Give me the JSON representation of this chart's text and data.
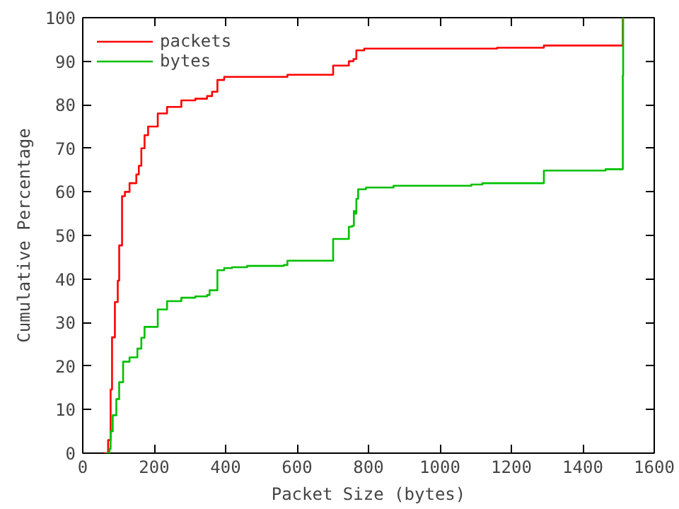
{
  "chart_data": {
    "type": "step",
    "xlabel": "Packet Size (bytes)",
    "ylabel": "Cumulative Percentage",
    "xlim": [
      0,
      1600
    ],
    "ylim": [
      0,
      100
    ],
    "xticks": [
      0,
      200,
      400,
      600,
      800,
      1000,
      1200,
      1400,
      1600
    ],
    "yticks": [
      0,
      10,
      20,
      30,
      40,
      50,
      60,
      70,
      80,
      90,
      100
    ],
    "grid": false,
    "legend": "top left",
    "marker": "none",
    "line_style": "solid",
    "series": [
      {
        "name": "packets",
        "color": "#ff0000",
        "x": [
          59,
          71,
          78,
          82,
          90,
          98,
          102,
          110,
          118,
          131,
          150,
          157,
          164,
          173,
          183,
          210,
          236,
          276,
          315,
          348,
          362,
          377,
          396,
          550,
          573,
          701,
          745,
          758,
          766,
          788,
          1160,
          1291,
          1512,
          1512
        ],
        "values": [
          0,
          3,
          14.6,
          26.6,
          34.7,
          39.6,
          47.7,
          59,
          60,
          62,
          64,
          66,
          70,
          73,
          75,
          78,
          79.5,
          81,
          81.4,
          82,
          83,
          85.7,
          86.4,
          86.4,
          86.9,
          89,
          90,
          90.5,
          92.5,
          92.9,
          93.1,
          93.6,
          96.6,
          100
        ]
      },
      {
        "name": "bytes",
        "color": "#00c000",
        "x": [
          65,
          75,
          78,
          84,
          94,
          102,
          113,
          131,
          153,
          164,
          173,
          210,
          236,
          276,
          315,
          348,
          355,
          377,
          396,
          418,
          460,
          563,
          573,
          701,
          745,
          754,
          759,
          762,
          766,
          771,
          793,
          870,
          1088,
          1119,
          1291,
          1464,
          1512,
          1513
        ],
        "values": [
          0,
          1,
          5,
          8.7,
          12.4,
          16.3,
          21,
          22,
          24,
          26.5,
          29,
          33,
          34.9,
          35.7,
          36,
          36.3,
          37.4,
          42,
          42.5,
          42.7,
          43,
          43.2,
          44.2,
          49.2,
          52,
          52.2,
          55.6,
          55,
          58.4,
          60.6,
          61,
          61.4,
          61.7,
          62,
          64.9,
          65.2,
          86.7,
          100
        ]
      }
    ]
  }
}
